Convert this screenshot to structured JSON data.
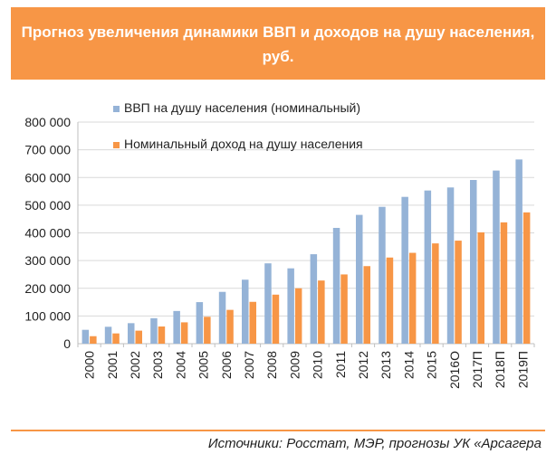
{
  "title": "Прогноз увеличения динамики ВВП и доходов на душу населения, руб.",
  "source": "Источники: Росстат, МЭР, прогнозы УК «Арсагера",
  "colors": {
    "header": "#f79646",
    "gdp": "#95b3d7",
    "income": "#f79646"
  },
  "chart_data": {
    "type": "bar",
    "title": "",
    "xlabel": "",
    "ylabel": "",
    "ylim": [
      0,
      800000
    ],
    "yticks": [
      "0",
      "100 000",
      "200 000",
      "300 000",
      "400 000",
      "500 000",
      "600 000",
      "700 000",
      "800 000"
    ],
    "grid": true,
    "legend_position": "top-left",
    "categories": [
      "2000",
      "2001",
      "2002",
      "2003",
      "2004",
      "2005",
      "2006",
      "2007",
      "2008",
      "2009",
      "2010",
      "2011",
      "2012",
      "2013",
      "2014",
      "2015",
      "2016О",
      "2017П",
      "2018П",
      "2019П"
    ],
    "series": [
      {
        "name": "ВВП на душу населения (номинальный)",
        "color": "#95b3d7",
        "values": [
          50000,
          61000,
          74000,
          92000,
          118000,
          150000,
          187000,
          231000,
          290000,
          272000,
          323000,
          418000,
          465000,
          494000,
          530000,
          553000,
          564000,
          591000,
          625000,
          665000
        ]
      },
      {
        "name": "Номинальный доход на душу населения",
        "color": "#f79646",
        "values": [
          27000,
          37000,
          47000,
          62000,
          77000,
          97000,
          122000,
          151000,
          177000,
          200000,
          228000,
          250000,
          280000,
          311000,
          328000,
          362000,
          372000,
          402000,
          438000,
          474000
        ]
      }
    ]
  }
}
